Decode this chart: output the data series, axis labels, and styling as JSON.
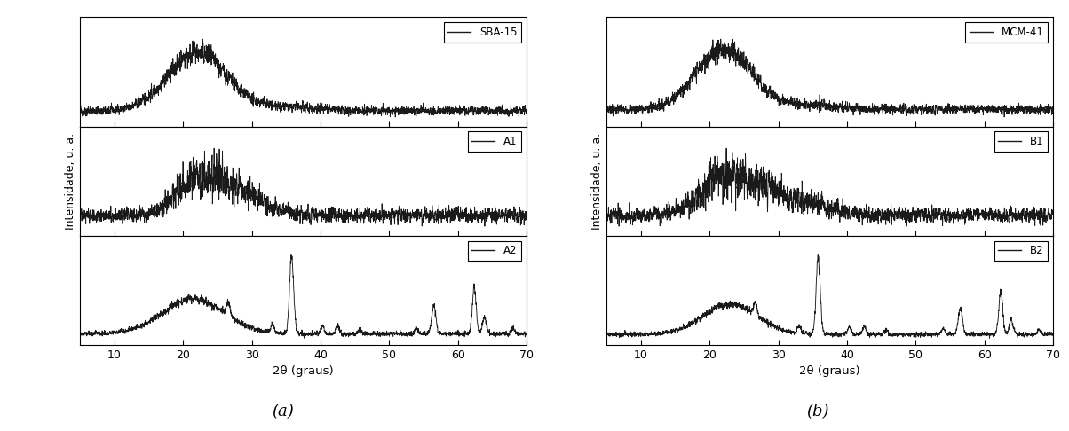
{
  "xlim": [
    5,
    70
  ],
  "xticks": [
    10,
    20,
    30,
    40,
    50,
    60,
    70
  ],
  "xlabel": "2θ (graus)",
  "ylabel": "Intensidade, u. a.",
  "left_labels": [
    "SBA-15",
    "A1",
    "A2"
  ],
  "right_labels": [
    "MCM-41",
    "B1",
    "B2"
  ],
  "panel_a_label": "(a)",
  "panel_b_label": "(b)",
  "line_color": "#1a1a1a",
  "bg_color": "#ffffff"
}
